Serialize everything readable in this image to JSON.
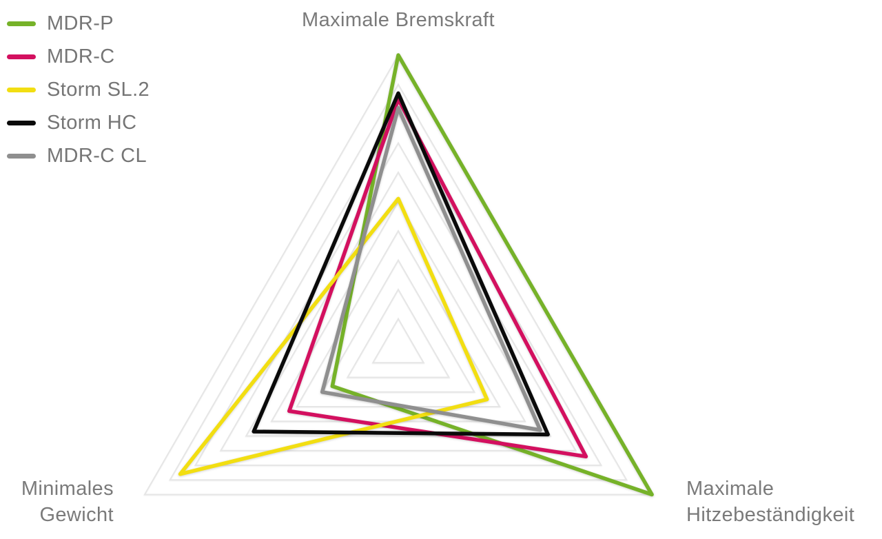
{
  "axis_labels": {
    "top": "Maximale Bremskraft",
    "bottom_left_line1": "Minimales",
    "bottom_left_line2": "Gewicht",
    "bottom_right_line1": "Maximale",
    "bottom_right_line2": "Hitzebeständigkeit"
  },
  "chart_data": {
    "type": "radar",
    "axes": [
      "Maximale Bremskraft",
      "Maximale Hitzebeständigkeit",
      "Minimales Gewicht"
    ],
    "scale": {
      "min": 0,
      "max": 10,
      "rings": 10,
      "grid": true
    },
    "legend_position": "top-left",
    "series": [
      {
        "name": "MDR-P",
        "color": "#76b229",
        "values": [
          10.0,
          10.0,
          2.6
        ]
      },
      {
        "name": "MDR-C",
        "color": "#d3105f",
        "values": [
          8.5,
          7.4,
          4.3
        ]
      },
      {
        "name": "Storm SL.2",
        "color": "#f2de12",
        "values": [
          5.1,
          3.5,
          8.6
        ]
      },
      {
        "name": "Storm HC",
        "color": "#0a0a0a",
        "values": [
          8.7,
          5.9,
          5.7
        ]
      },
      {
        "name": "MDR-C CL",
        "color": "#8f8f8f",
        "values": [
          8.2,
          5.6,
          3.0
        ]
      }
    ],
    "style": {
      "grid_color": "#e6e6e6",
      "label_color": "#7a7a7a"
    }
  }
}
